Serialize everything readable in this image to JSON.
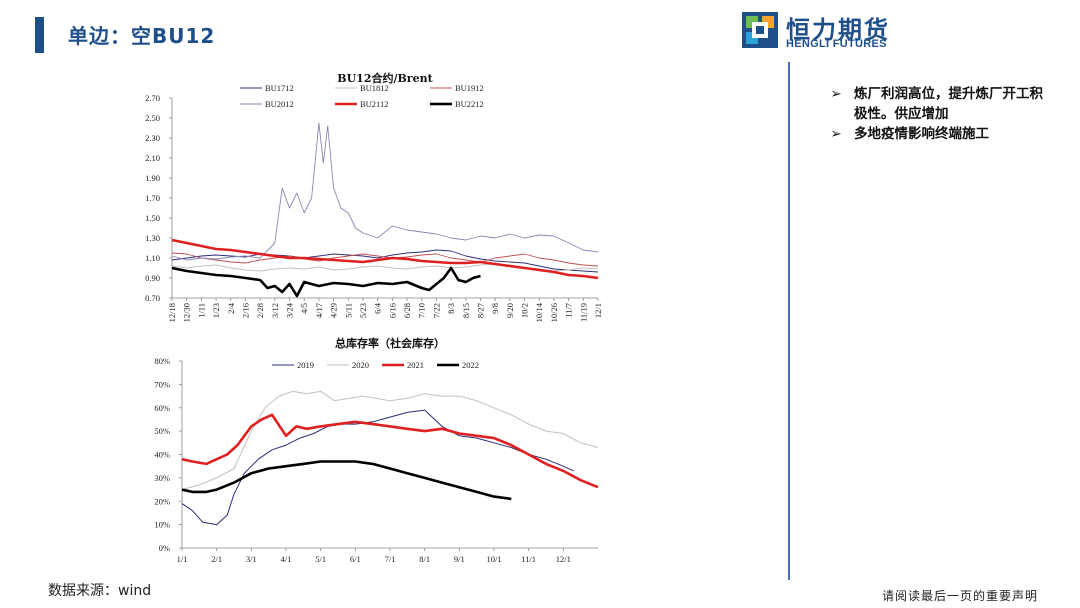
{
  "page_title": "单边：空BU12",
  "logo": {
    "cn": "恒力期货",
    "en": "HENGLI FUTURES"
  },
  "bullets": [
    "炼厂利润高位，提升炼厂开工积极性。供应增加",
    "多地疫情影响终端施工"
  ],
  "bullet_marker": "➢",
  "source_text": "数据来源：wind",
  "disclaimer": "请阅读最后一页的重要声明",
  "colors": {
    "brand": "#1f4f8a",
    "accent_bar": "#1f4f8a",
    "red": "#e02020",
    "black": "#000000"
  },
  "chart_data": [
    {
      "type": "line",
      "title": "BU12合约/Brent",
      "ylim": [
        0.7,
        2.7
      ],
      "yticks": [
        "2.70",
        "2.50",
        "2.30",
        "2.10",
        "1.90",
        "1.70",
        "1.50",
        "1.30",
        "1.10",
        "0.90",
        "0.70"
      ],
      "xticks": [
        "12/18",
        "12/30",
        "1/11",
        "1/23",
        "2/4",
        "2/16",
        "2/28",
        "3/12",
        "3/24",
        "4/5",
        "4/17",
        "4/29",
        "5/11",
        "5/23",
        "6/4",
        "6/16",
        "6/28",
        "7/10",
        "7/22",
        "8/3",
        "8/15",
        "8/27",
        "9/8",
        "9/20",
        "10/2",
        "10/14",
        "10/26",
        "11/7",
        "11/19",
        "12/1"
      ],
      "legend": "top",
      "series": [
        {
          "name": "BU1712",
          "color": "#2a2f7a",
          "width": 0.9,
          "x": [
            0,
            1,
            2,
            3,
            4,
            5,
            6,
            7,
            8,
            9,
            10,
            11,
            12,
            13,
            14,
            15,
            16,
            17,
            18,
            19,
            20,
            21,
            22,
            23,
            24,
            25,
            26,
            27,
            28,
            29
          ],
          "values": [
            1.08,
            1.1,
            1.12,
            1.13,
            1.12,
            1.11,
            1.14,
            1.13,
            1.12,
            1.1,
            1.12,
            1.14,
            1.13,
            1.12,
            1.1,
            1.13,
            1.15,
            1.16,
            1.18,
            1.17,
            1.12,
            1.09,
            1.07,
            1.06,
            1.05,
            1.02,
            0.99,
            0.98,
            0.97,
            0.96
          ]
        },
        {
          "name": "BU1812",
          "color": "#c0c0c0",
          "width": 0.9,
          "x": [
            0,
            1,
            2,
            3,
            4,
            5,
            6,
            7,
            8,
            9,
            10,
            11,
            12,
            13,
            14,
            15,
            16,
            17,
            18,
            19,
            20,
            21,
            22,
            23,
            24,
            25,
            26,
            27,
            28,
            29
          ],
          "values": [
            1.02,
            1.0,
            1.02,
            1.03,
            1.0,
            0.98,
            0.97,
            0.99,
            1.0,
            0.99,
            1.01,
            0.98,
            0.99,
            1.01,
            1.02,
            1.0,
            0.99,
            1.01,
            1.02,
            1.0,
            1.01,
            1.03,
            1.04,
            1.02,
            1.0,
            0.99,
            0.97,
            0.98,
            1.0,
            0.99
          ]
        },
        {
          "name": "BU1912",
          "color": "#c05050",
          "width": 0.9,
          "x": [
            0,
            1,
            2,
            3,
            4,
            5,
            6,
            7,
            8,
            9,
            10,
            11,
            12,
            13,
            14,
            15,
            16,
            17,
            18,
            19,
            20,
            21,
            22,
            23,
            24,
            25,
            26,
            27,
            28,
            29
          ],
          "values": [
            1.15,
            1.14,
            1.1,
            1.08,
            1.06,
            1.05,
            1.08,
            1.1,
            1.12,
            1.09,
            1.07,
            1.1,
            1.12,
            1.14,
            1.12,
            1.1,
            1.11,
            1.13,
            1.14,
            1.1,
            1.08,
            1.06,
            1.1,
            1.12,
            1.14,
            1.1,
            1.08,
            1.05,
            1.03,
            1.02
          ]
        },
        {
          "name": "BU2012",
          "color": "#8a86b5",
          "width": 0.9,
          "x": [
            0,
            1,
            2,
            3,
            4,
            5,
            6,
            7,
            7.5,
            8,
            8.5,
            9,
            9.5,
            10,
            10.3,
            10.6,
            11,
            11.5,
            12,
            12.5,
            13,
            14,
            15,
            16,
            17,
            18,
            19,
            20,
            21,
            22,
            23,
            24,
            25,
            26,
            27,
            28,
            29
          ],
          "values": [
            1.12,
            1.08,
            1.1,
            1.09,
            1.11,
            1.12,
            1.1,
            1.25,
            1.8,
            1.6,
            1.75,
            1.55,
            1.7,
            2.45,
            2.05,
            2.42,
            1.8,
            1.6,
            1.55,
            1.4,
            1.35,
            1.3,
            1.42,
            1.38,
            1.36,
            1.34,
            1.3,
            1.28,
            1.32,
            1.3,
            1.34,
            1.3,
            1.33,
            1.32,
            1.25,
            1.18,
            1.16
          ]
        },
        {
          "name": "BU2112",
          "color": "#e02020",
          "width": 2.6,
          "x": [
            0,
            1,
            2,
            3,
            4,
            5,
            6,
            7,
            8,
            9,
            10,
            11,
            12,
            13,
            14,
            15,
            16,
            17,
            18,
            19,
            20,
            21,
            22,
            23,
            24,
            25,
            26,
            27,
            28,
            29
          ],
          "values": [
            1.28,
            1.25,
            1.22,
            1.19,
            1.18,
            1.16,
            1.14,
            1.12,
            1.1,
            1.1,
            1.09,
            1.08,
            1.07,
            1.06,
            1.08,
            1.1,
            1.09,
            1.07,
            1.06,
            1.05,
            1.05,
            1.06,
            1.04,
            1.02,
            1.0,
            0.98,
            0.96,
            0.93,
            0.92,
            0.9
          ]
        },
        {
          "name": "BU2212",
          "color": "#000000",
          "width": 2.6,
          "x": [
            0,
            1,
            2,
            3,
            4,
            5,
            6,
            6.5,
            7,
            7.5,
            8,
            8.5,
            9,
            10,
            11,
            12,
            13,
            14,
            15,
            16,
            17,
            17.5,
            18,
            18.5,
            19,
            19.5,
            20,
            20.5,
            21
          ],
          "values": [
            1.0,
            0.97,
            0.95,
            0.93,
            0.92,
            0.9,
            0.88,
            0.8,
            0.82,
            0.76,
            0.84,
            0.72,
            0.86,
            0.82,
            0.85,
            0.84,
            0.82,
            0.85,
            0.84,
            0.86,
            0.8,
            0.78,
            0.84,
            0.9,
            1.0,
            0.88,
            0.86,
            0.9,
            0.92
          ]
        }
      ]
    },
    {
      "type": "line",
      "title": "总库存率（社会库存）",
      "ylim": [
        0,
        80
      ],
      "yticks": [
        "80%",
        "70%",
        "60%",
        "50%",
        "40%",
        "30%",
        "20%",
        "10%",
        "0%"
      ],
      "xticks": [
        "1/1",
        "2/1",
        "3/1",
        "4/1",
        "5/1",
        "6/1",
        "7/1",
        "8/1",
        "9/1",
        "10/1",
        "11/1",
        "12/1"
      ],
      "legend": "top",
      "series": [
        {
          "name": "2019",
          "color": "#2a2f7a",
          "width": 1.0,
          "x": [
            0,
            0.3,
            0.6,
            1.0,
            1.3,
            1.5,
            1.8,
            2.2,
            2.6,
            3.0,
            3.4,
            3.8,
            4.2,
            4.6,
            5.0,
            5.5,
            6.0,
            6.5,
            7.0,
            7.5,
            8.0,
            8.5,
            9.0,
            9.5,
            10.0,
            10.5,
            11.0,
            11.3
          ],
          "values": [
            19,
            16,
            11,
            10,
            14,
            23,
            32,
            38,
            42,
            44,
            47,
            49,
            52,
            53,
            53,
            54,
            56,
            58,
            59,
            52,
            48,
            47,
            45,
            43,
            40,
            38,
            35,
            33
          ]
        },
        {
          "name": "2020",
          "color": "#c0c0c0",
          "width": 1.0,
          "x": [
            0,
            0.5,
            1.0,
            1.5,
            2.0,
            2.4,
            2.8,
            3.2,
            3.6,
            4.0,
            4.4,
            4.8,
            5.2,
            5.6,
            6.0,
            6.5,
            7.0,
            7.5,
            8.0,
            8.5,
            9.0,
            9.5,
            10.0,
            10.5,
            11.0,
            11.5,
            12.0
          ],
          "values": [
            25,
            27,
            30,
            34,
            50,
            60,
            65,
            67,
            66,
            67,
            63,
            64,
            65,
            64,
            63,
            64,
            66,
            65,
            65,
            63,
            60,
            57,
            53,
            50,
            49,
            45,
            43
          ]
        },
        {
          "name": "2021",
          "color": "#e02020",
          "width": 2.6,
          "x": [
            0,
            0.3,
            0.7,
            1.0,
            1.3,
            1.6,
            2.0,
            2.3,
            2.6,
            3.0,
            3.3,
            3.6,
            4.0,
            4.5,
            5.0,
            5.5,
            6.0,
            6.5,
            7.0,
            7.5,
            8.0,
            8.5,
            9.0,
            9.5,
            10.0,
            10.5,
            11.0,
            11.5,
            12.0
          ],
          "values": [
            38,
            37,
            36,
            38,
            40,
            44,
            52,
            55,
            57,
            48,
            52,
            51,
            52,
            53,
            54,
            53,
            52,
            51,
            50,
            51,
            49,
            48,
            47,
            44,
            40,
            36,
            33,
            29,
            26
          ]
        },
        {
          "name": "2022",
          "color": "#000000",
          "width": 2.6,
          "x": [
            0,
            0.3,
            0.7,
            1.0,
            1.5,
            2.0,
            2.5,
            3.0,
            3.5,
            4.0,
            4.5,
            5.0,
            5.5,
            6.0,
            6.5,
            7.0,
            7.5,
            8.0,
            8.5,
            9.0,
            9.5
          ],
          "values": [
            25,
            24,
            24,
            25,
            28,
            32,
            34,
            35,
            36,
            37,
            37,
            37,
            36,
            34,
            32,
            30,
            28,
            26,
            24,
            22,
            21
          ]
        }
      ]
    }
  ]
}
